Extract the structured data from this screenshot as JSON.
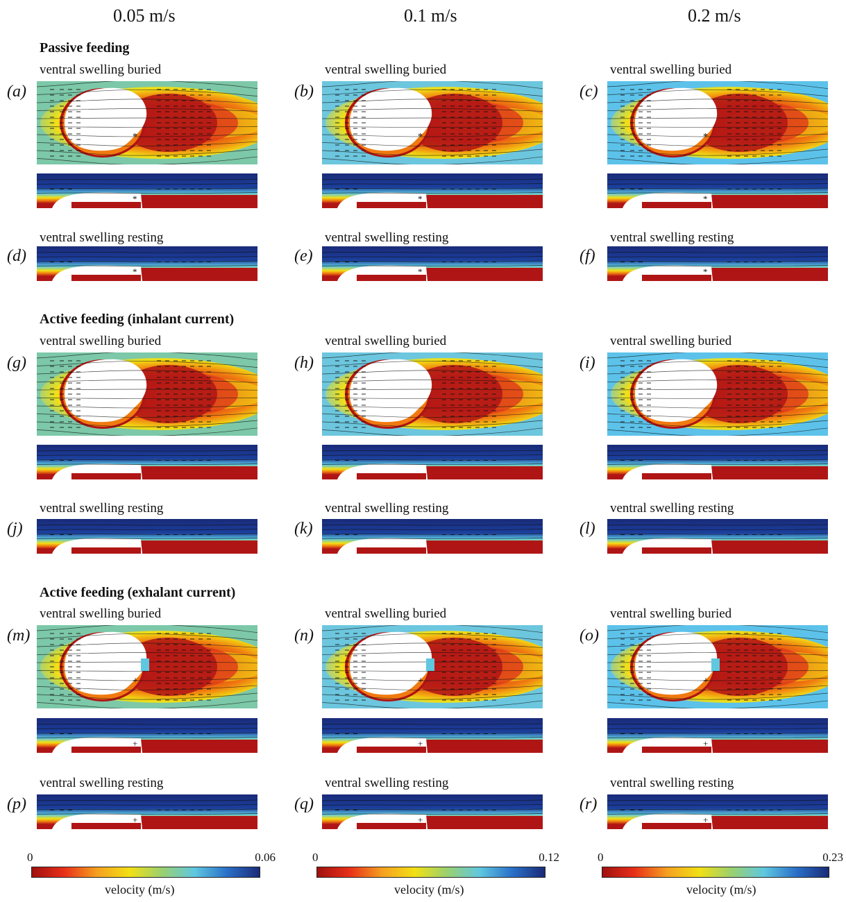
{
  "columns": [
    "0.05 m/s",
    "0.1 m/s",
    "0.2 m/s"
  ],
  "sections": [
    {
      "title": "Passive feeding"
    },
    {
      "title": "Active feeding (inhalant current)"
    },
    {
      "title": "Active feeding (exhalant current)"
    }
  ],
  "subtitles": {
    "buried": "ventral swelling buried",
    "resting": "ventral swelling resting"
  },
  "panel_labels": [
    "(a)",
    "(b)",
    "(c)",
    "(d)",
    "(e)",
    "(f)",
    "(g)",
    "(h)",
    "(i)",
    "(j)",
    "(k)",
    "(l)",
    "(m)",
    "(n)",
    "(o)",
    "(p)",
    "(q)",
    "(r)"
  ],
  "markers": {
    "passive": "*",
    "exhalant": "+"
  },
  "colorbars": [
    {
      "min": "0",
      "max": "0.06",
      "label": "velocity (m/s)"
    },
    {
      "min": "0",
      "max": "0.12",
      "label": "velocity (m/s)"
    },
    {
      "min": "0",
      "max": "0.23",
      "label": "velocity (m/s)"
    }
  ],
  "colors": {
    "low": "#b01515",
    "orange": "#f07a10",
    "yellow": "#f2e014",
    "cyan": "#5fc8e0",
    "blue": "#1b3f9e",
    "navy": "#1a2a78",
    "mid_col1": "#7cc8a8",
    "mid_col2": "#6cc6de",
    "mid_col3": "#5cc2ea"
  }
}
